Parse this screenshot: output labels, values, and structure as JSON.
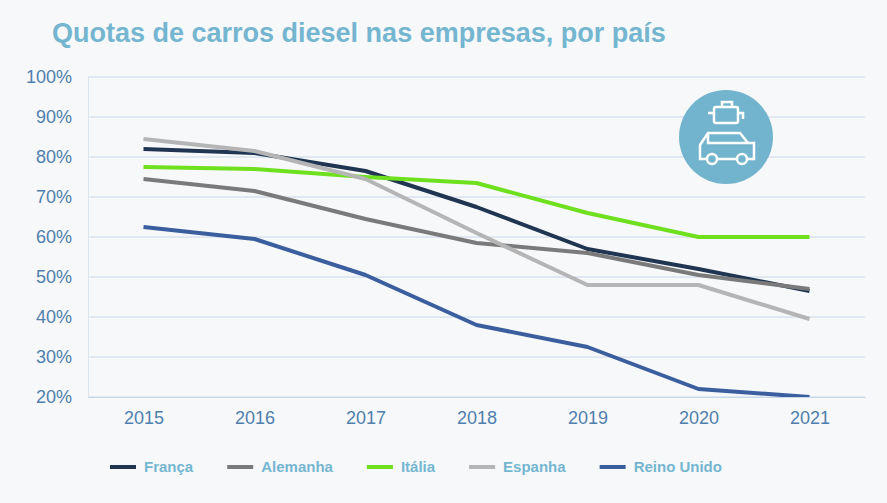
{
  "chart_data": {
    "type": "line",
    "title": "Quotas de carros diesel nas empresas, por país",
    "categories": [
      "2015",
      "2016",
      "2017",
      "2018",
      "2019",
      "2020",
      "2021"
    ],
    "series": [
      {
        "name": "França",
        "color": "#1f3552",
        "values": [
          82,
          81,
          76.5,
          67.5,
          57,
          52,
          46.5
        ]
      },
      {
        "name": "Alemanha",
        "color": "#7a7a7a",
        "values": [
          74.5,
          71.5,
          64.5,
          58.5,
          56,
          50.5,
          47
        ]
      },
      {
        "name": "Itália",
        "color": "#6ee01e",
        "values": [
          77.5,
          77,
          75,
          73.5,
          66,
          60,
          60
        ]
      },
      {
        "name": "Espanha",
        "color": "#b5b5b5",
        "values": [
          84.5,
          81.5,
          74.5,
          61,
          48,
          48,
          39.5
        ]
      },
      {
        "name": "Reino Unido",
        "color": "#3a5e9e",
        "values": [
          62.5,
          59.5,
          50.5,
          38,
          32.5,
          22,
          20
        ]
      }
    ],
    "ylim": [
      20,
      100
    ],
    "yticks": [
      {
        "value": 20,
        "label": "20%"
      },
      {
        "value": 30,
        "label": "30%"
      },
      {
        "value": 40,
        "label": "40%"
      },
      {
        "value": 50,
        "label": "50%"
      },
      {
        "value": 60,
        "label": "60%"
      },
      {
        "value": 70,
        "label": "70%"
      },
      {
        "value": 80,
        "label": "80%"
      },
      {
        "value": 90,
        "label": "90%"
      },
      {
        "value": 100,
        "label": "100%"
      }
    ],
    "grid": true,
    "legend": "bottom"
  }
}
